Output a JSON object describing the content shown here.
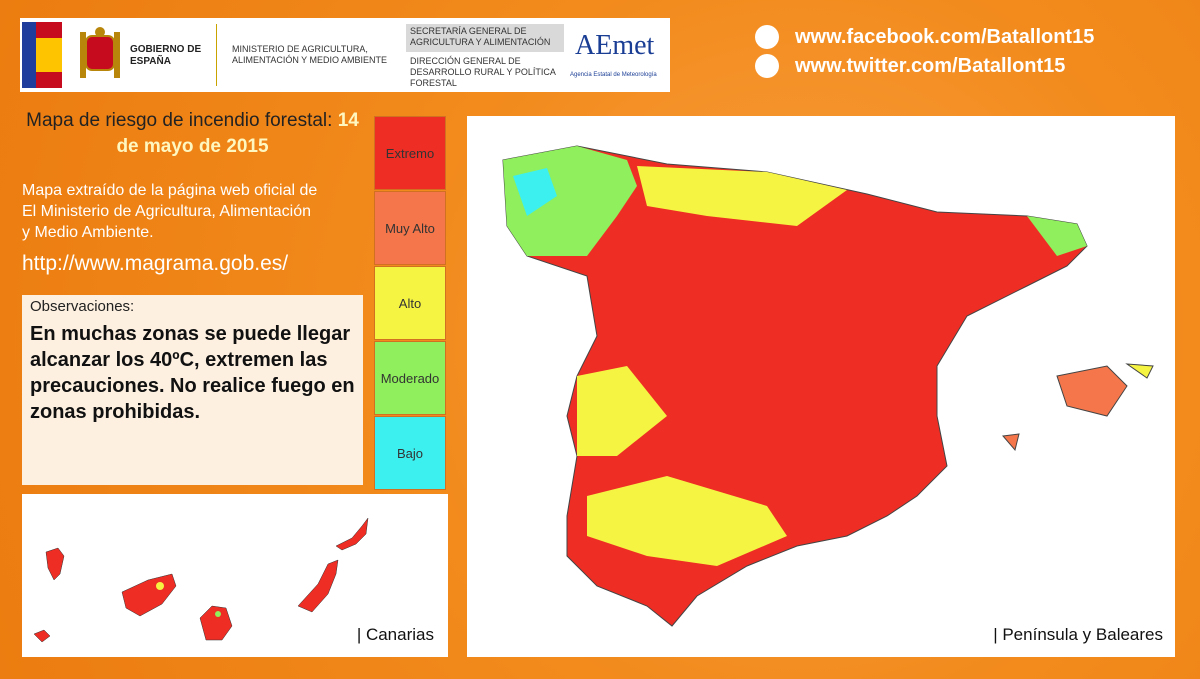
{
  "header": {
    "gobierno": "GOBIERNO DE ESPAÑA",
    "ministerio": "MINISTERIO DE AGRICULTURA, ALIMENTACIÓN Y MEDIO AMBIENTE",
    "secretaria": "SECRETARÍA GENERAL DE AGRICULTURA Y ALIMENTACIÓN",
    "direccion": "DIRECCIÓN GENERAL DE DESARROLLO RURAL Y POLÍTICA FORESTAL",
    "aemet": "AEmet",
    "aemet_full": "Agencia Estatal de Meteorología"
  },
  "social": [
    {
      "prefix": "www.facebook.com/",
      "handle": "Batallont15"
    },
    {
      "prefix": "www.twitter.com/",
      "handle": "Batallont15"
    }
  ],
  "title": {
    "text": "Mapa de riesgo de incendio forestal:",
    "date": "14 de mayo de 2015"
  },
  "description": "Mapa extraído de la página web oficial de El Ministerio de Agricultura, Alimentación y Medio Ambiente.",
  "url": "http://www.magrama.gob.es/",
  "observations": {
    "label": "Observaciones:",
    "text": "En muchas zonas se puede llegar alcanzar los 40ºC, extremen las precauciones. No realice fuego en zonas prohibidas."
  },
  "legend": [
    {
      "label": "Extremo",
      "color": "#ee2d24"
    },
    {
      "label": "Muy Alto",
      "color": "#f4764a"
    },
    {
      "label": "Alto",
      "color": "#f6f443"
    },
    {
      "label": "Moderado",
      "color": "#8fef5c"
    },
    {
      "label": "Bajo",
      "color": "#3cf0f0"
    }
  ],
  "maps": {
    "canarias": "| Canarias",
    "peninsula": "| Península y Baleares"
  }
}
